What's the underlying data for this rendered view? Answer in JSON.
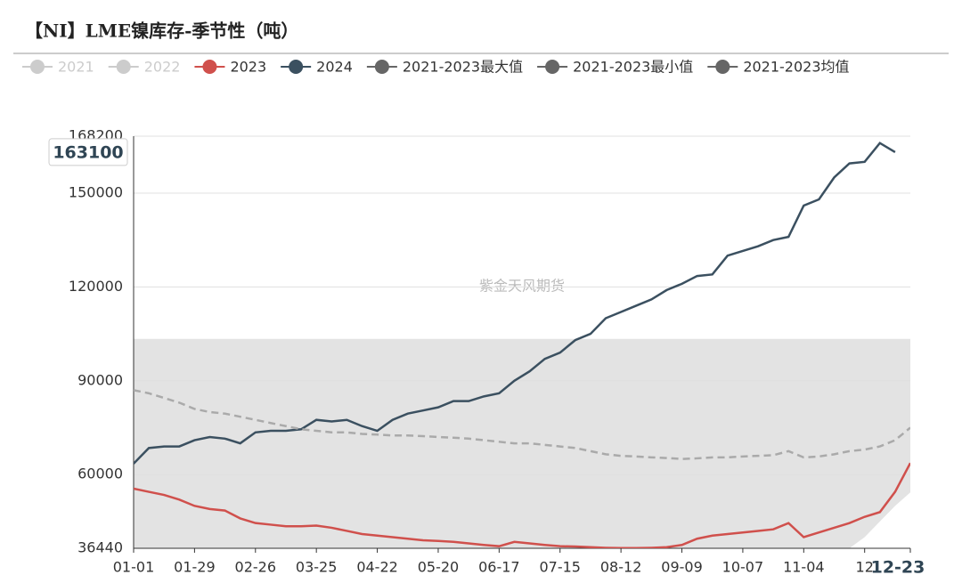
{
  "chart_data": {
    "type": "line",
    "title": "【NI】LME镍库存-季节性（吨）",
    "watermark": "紫金天风期货",
    "categories": [
      "01-01",
      null,
      null,
      null,
      "01-29",
      null,
      null,
      null,
      "02-26",
      null,
      null,
      null,
      "03-25",
      null,
      null,
      null,
      "04-22",
      null,
      null,
      null,
      "05-20",
      null,
      null,
      null,
      "06-17",
      null,
      null,
      null,
      "07-15",
      null,
      null,
      null,
      "08-12",
      null,
      null,
      null,
      "09-09",
      null,
      null,
      null,
      "10-07",
      null,
      null,
      null,
      "11-04",
      null,
      null,
      null,
      "12",
      null,
      null,
      "12-23"
    ],
    "highlight_category": 51,
    "ylim": [
      36440,
      168200
    ],
    "yticks": [
      36440,
      60000,
      90000,
      120000,
      150000,
      168200
    ],
    "y_pointer": 163100,
    "grid": true,
    "series": [
      {
        "name": "2021",
        "color": "#cccccc",
        "hidden": true,
        "values": [
          null,
          null,
          null,
          null,
          null,
          null,
          null,
          null,
          null,
          null,
          null,
          null,
          null,
          null,
          null,
          null,
          null,
          null,
          null,
          null,
          null,
          null,
          null,
          null,
          null,
          null,
          null,
          null,
          null,
          null,
          null,
          null,
          null,
          null,
          null,
          null,
          null,
          null,
          null,
          null,
          null,
          null,
          null,
          null,
          null,
          null,
          null,
          null,
          null,
          null,
          null,
          null
        ]
      },
      {
        "name": "2022",
        "color": "#cccccc",
        "hidden": true,
        "values": [
          null,
          null,
          null,
          null,
          null,
          null,
          null,
          null,
          null,
          null,
          null,
          null,
          null,
          null,
          null,
          null,
          null,
          null,
          null,
          null,
          null,
          null,
          null,
          null,
          null,
          null,
          null,
          null,
          null,
          null,
          null,
          null,
          null,
          null,
          null,
          null,
          null,
          null,
          null,
          null,
          null,
          null,
          null,
          null,
          null,
          null,
          null,
          null,
          null,
          null,
          null,
          null
        ]
      },
      {
        "name": "2023",
        "color": "#d0504c",
        "values": [
          55500,
          54500,
          53500,
          52000,
          50000,
          49000,
          48500,
          46000,
          44500,
          44000,
          43500,
          43500,
          43700,
          43000,
          42000,
          41000,
          40500,
          40000,
          39500,
          39000,
          38800,
          38500,
          38000,
          37500,
          37100,
          38500,
          38000,
          37500,
          37100,
          37000,
          36800,
          36600,
          36500,
          36500,
          36600,
          36800,
          37500,
          39500,
          40500,
          41000,
          41500,
          42000,
          42500,
          44500,
          40000,
          41500,
          43000,
          44500,
          46500,
          48000,
          54500,
          63700
        ]
      },
      {
        "name": "2024",
        "color": "#3b5060",
        "values": [
          63500,
          68500,
          69000,
          69000,
          71000,
          72000,
          71500,
          70000,
          73500,
          74000,
          74000,
          74500,
          77500,
          77000,
          77500,
          75500,
          74000,
          77500,
          79500,
          80500,
          81500,
          83500,
          83500,
          85000,
          86000,
          90000,
          93000,
          97000,
          99000,
          103000,
          105000,
          110000,
          112000,
          114000,
          116000,
          119000,
          121000,
          123500,
          124000,
          130000,
          131500,
          133000,
          135000,
          136000,
          146000,
          148000,
          155000,
          159500,
          160000,
          166000,
          163100,
          null
        ]
      },
      {
        "name": "2021-2023最大值",
        "color": "#666666",
        "role": "max",
        "fill": "#e3e3e3",
        "values": [
          103400,
          103400,
          103400,
          103400,
          103400,
          103400,
          103400,
          103400,
          103400,
          103400,
          103400,
          103400,
          103400,
          103400,
          103400,
          103400,
          103400,
          103400,
          103400,
          103400,
          103400,
          103400,
          103400,
          103400,
          103400,
          103400,
          103400,
          103400,
          103400,
          103400,
          103400,
          103400,
          103400,
          103400,
          103400,
          103400,
          103400,
          103400,
          103400,
          103400,
          103400,
          103400,
          103400,
          103400,
          103400,
          103400,
          103400,
          103400,
          103400,
          103400,
          103400,
          103400
        ]
      },
      {
        "name": "2021-2023最小值",
        "color": "#666666",
        "role": "min",
        "values": [
          36440,
          36440,
          36440,
          36440,
          36440,
          36440,
          36440,
          36440,
          36440,
          36440,
          36440,
          36440,
          36440,
          36440,
          36440,
          36440,
          36440,
          36440,
          36440,
          36440,
          36440,
          36440,
          36440,
          36440,
          36440,
          36440,
          36440,
          36440,
          36440,
          36440,
          36440,
          36440,
          36440,
          36440,
          36440,
          36440,
          36440,
          36440,
          36440,
          36440,
          36440,
          36440,
          36440,
          36440,
          36440,
          36440,
          36440,
          36440,
          40000,
          45000,
          50000,
          54300
        ]
      },
      {
        "name": "2021-2023均值",
        "color": "#666666",
        "line_color": "#aaaaaa",
        "dashed": true,
        "values": [
          87000,
          86000,
          84500,
          83000,
          81000,
          80000,
          79500,
          78500,
          77500,
          76500,
          75500,
          74500,
          74000,
          73500,
          73500,
          73000,
          72800,
          72500,
          72500,
          72300,
          72000,
          71800,
          71500,
          71000,
          70500,
          70000,
          70000,
          69500,
          69000,
          68500,
          67500,
          66500,
          66000,
          65800,
          65500,
          65300,
          65000,
          65200,
          65500,
          65500,
          65800,
          66000,
          66200,
          67500,
          65500,
          65800,
          66500,
          67500,
          68000,
          69000,
          71000,
          75000
        ]
      }
    ]
  }
}
